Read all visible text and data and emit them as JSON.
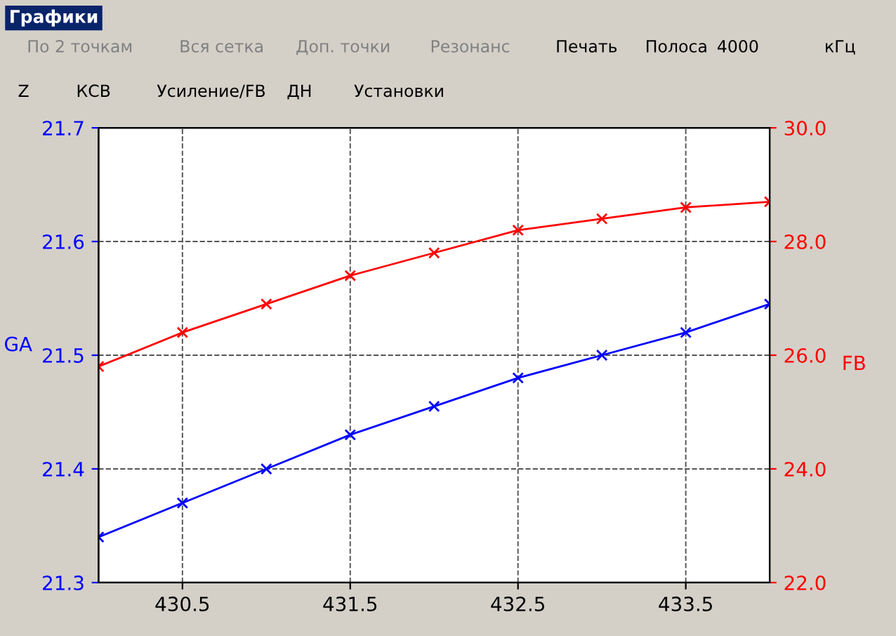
{
  "chart_data": {
    "type": "line",
    "ylabel": "GA",
    "y2label": "FB",
    "annotations": [
      "Графики",
      "По 2 точкам",
      "Вся сетка",
      "Доп. точки",
      "Резонанс",
      "Печать",
      "Полоса",
      "4000",
      "кГц",
      "Z",
      "КСВ",
      "Усиление/FB",
      "ДН",
      "Установки"
    ],
    "x": [
      430.0,
      430.5,
      431.0,
      431.5,
      432.0,
      432.5,
      433.0,
      433.5,
      434.0
    ],
    "series": [
      {
        "color": "#0000ff",
        "values": [
          21.34,
          21.37,
          21.4,
          21.43,
          21.455,
          21.48,
          21.5,
          21.52,
          21.545
        ]
      },
      {
        "color": "#ff0000",
        "axis": "y2",
        "values": [
          25.8,
          26.4,
          26.9,
          27.4,
          27.8,
          28.2,
          28.4,
          28.6,
          28.7
        ]
      }
    ],
    "xlim": [
      430.0,
      434.0
    ],
    "xticks": [
      430.5,
      431.5,
      432.5,
      433.5
    ],
    "ylim": [
      21.3,
      21.7
    ],
    "yticks": [
      21.3,
      21.4,
      21.5,
      21.6,
      21.7
    ],
    "y2lim": [
      22,
      30
    ],
    "y2ticks": [
      {
        "value": 22,
        "label": "22.0"
      },
      {
        "value": 24,
        "label": "24.0"
      },
      {
        "value": 26,
        "label": "26.0"
      },
      {
        "value": 28,
        "label": "28.0"
      },
      {
        "value": 30,
        "label": "30.0"
      }
    ],
    "grid": true,
    "marker": "cross",
    "line_style": "solid"
  }
}
